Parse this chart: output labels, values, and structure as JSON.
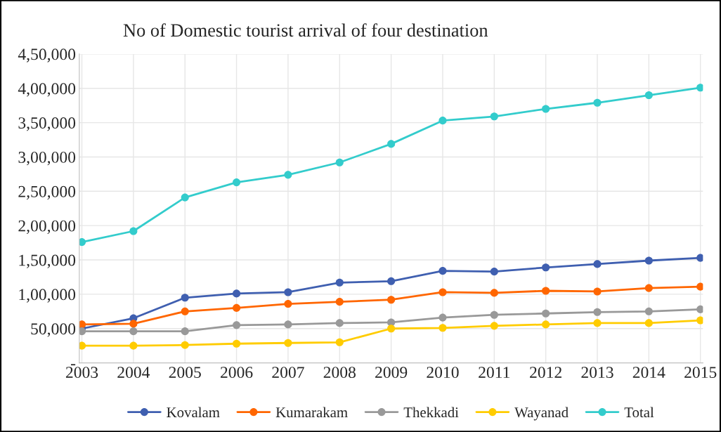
{
  "chart_data": {
    "type": "line",
    "title": "No of Domestic tourist arrival of four destination",
    "categories": [
      "2003",
      "2004",
      "2005",
      "2006",
      "2007",
      "2008",
      "2009",
      "2010",
      "2011",
      "2012",
      "2013",
      "2014",
      "2015"
    ],
    "series": [
      {
        "name": "Kovalam",
        "color": "#3f5fb0",
        "values": [
          50000,
          65000,
          95000,
          101000,
          103000,
          117000,
          119000,
          134000,
          133000,
          139000,
          144000,
          149000,
          153000
        ]
      },
      {
        "name": "Kumarakam",
        "color": "#ff6600",
        "values": [
          56000,
          57000,
          75000,
          80000,
          86000,
          89000,
          92000,
          103000,
          102000,
          105000,
          104000,
          109000,
          111000
        ]
      },
      {
        "name": "Thekkadi",
        "color": "#999999",
        "values": [
          46000,
          46000,
          46000,
          55000,
          56000,
          58000,
          59000,
          66000,
          70000,
          72000,
          74000,
          75000,
          78000
        ]
      },
      {
        "name": "Wayanad",
        "color": "#ffcc00",
        "values": [
          25000,
          25000,
          26000,
          28000,
          29000,
          30000,
          50000,
          51000,
          54000,
          56000,
          58000,
          58000,
          62000
        ]
      },
      {
        "name": "Total",
        "color": "#33cccc",
        "values": [
          176000,
          192000,
          241000,
          263000,
          274000,
          292000,
          319000,
          353000,
          359000,
          370000,
          379000,
          390000,
          401000
        ]
      }
    ],
    "ylim": [
      0,
      450000
    ],
    "yticks": [
      {
        "value": 0,
        "label": "-"
      },
      {
        "value": 50000,
        "label": "50,000"
      },
      {
        "value": 100000,
        "label": "1,00,000"
      },
      {
        "value": 150000,
        "label": "1,50,000"
      },
      {
        "value": 200000,
        "label": "2,00,000"
      },
      {
        "value": 250000,
        "label": "2,50,000"
      },
      {
        "value": 300000,
        "label": "3,00,000"
      },
      {
        "value": 350000,
        "label": "3,50,000"
      },
      {
        "value": 400000,
        "label": "4,00,000"
      },
      {
        "value": 450000,
        "label": "4,50,000"
      }
    ],
    "grid": true,
    "legend": "bottom",
    "marker": "circle",
    "line_style": "solid"
  }
}
